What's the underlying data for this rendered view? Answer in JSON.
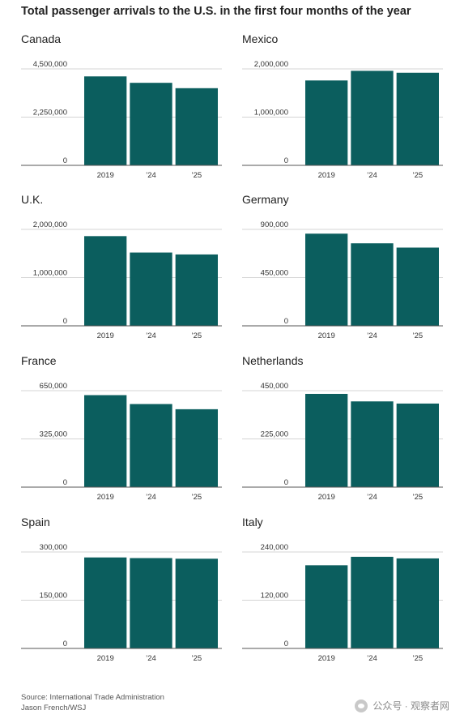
{
  "title": "Total passenger arrivals to the U.S. in the first four months of the year",
  "source": "Source: International Trade Administration",
  "credit": "Jason French/WSJ",
  "watermark": "公众号 · 观察者网",
  "colors": {
    "bar": "#0b5e5e",
    "grid": "#d4d4d4",
    "baseline": "#555555"
  },
  "chart_data": [
    {
      "type": "bar",
      "title": "Canada",
      "categories": [
        "2019",
        "’24",
        "’25"
      ],
      "values": [
        4150000,
        3850000,
        3600000
      ],
      "ylim": [
        0,
        4500000
      ],
      "yticks": [
        "0",
        "2,250,000",
        "4,500,000"
      ]
    },
    {
      "type": "bar",
      "title": "Mexico",
      "categories": [
        "2019",
        "’24",
        "’25"
      ],
      "values": [
        1760000,
        1960000,
        1920000
      ],
      "ylim": [
        0,
        2000000
      ],
      "yticks": [
        "0",
        "1,000,000",
        "2,000,000"
      ]
    },
    {
      "type": "bar",
      "title": "U.K.",
      "categories": [
        "2019",
        "’24",
        "’25"
      ],
      "values": [
        1860000,
        1520000,
        1480000
      ],
      "ylim": [
        0,
        2000000
      ],
      "yticks": [
        "0",
        "1,000,000",
        "2,000,000"
      ]
    },
    {
      "type": "bar",
      "title": "Germany",
      "categories": [
        "2019",
        "’24",
        "’25"
      ],
      "values": [
        860000,
        770000,
        730000
      ],
      "ylim": [
        0,
        900000
      ],
      "yticks": [
        "0",
        "450,000",
        "900,000"
      ]
    },
    {
      "type": "bar",
      "title": "France",
      "categories": [
        "2019",
        "’24",
        "’25"
      ],
      "values": [
        620000,
        560000,
        525000
      ],
      "ylim": [
        0,
        650000
      ],
      "yticks": [
        "0",
        "325,000",
        "650,000"
      ]
    },
    {
      "type": "bar",
      "title": "Netherlands",
      "categories": [
        "2019",
        "’24",
        "’25"
      ],
      "values": [
        435000,
        400000,
        390000
      ],
      "ylim": [
        0,
        450000
      ],
      "yticks": [
        "0",
        "225,000",
        "450,000"
      ]
    },
    {
      "type": "bar",
      "title": "Spain",
      "categories": [
        "2019",
        "’24",
        "’25"
      ],
      "values": [
        283000,
        281000,
        279000
      ],
      "ylim": [
        0,
        300000
      ],
      "yticks": [
        "0",
        "150,000",
        "300,000"
      ]
    },
    {
      "type": "bar",
      "title": "Italy",
      "categories": [
        "2019",
        "’24",
        "’25"
      ],
      "values": [
        207000,
        228000,
        224000
      ],
      "ylim": [
        0,
        240000
      ],
      "yticks": [
        "0",
        "120,000",
        "240,000"
      ]
    }
  ]
}
